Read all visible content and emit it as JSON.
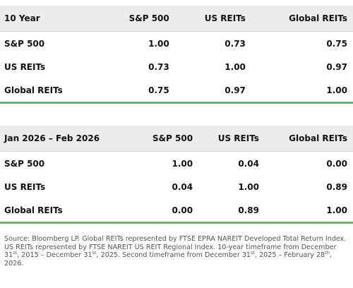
{
  "tables": [
    {
      "header": [
        "10 Year",
        "S&P 500",
        "US REITs",
        "Global REITs"
      ],
      "rows": [
        [
          "S&P 500",
          "1.00",
          "0.73",
          "0.75"
        ],
        [
          "US REITs",
          "0.73",
          "1.00",
          "0.97"
        ],
        [
          "Global REITs",
          "0.75",
          "0.97",
          "1.00"
        ]
      ]
    },
    {
      "header": [
        "Jan 2026 – Feb 2026",
        "S&P 500",
        "US REITs",
        "Global REITs"
      ],
      "rows": [
        [
          "S&P 500",
          "1.00",
          "0.04",
          "0.00"
        ],
        [
          "US REITs",
          "0.04",
          "1.00",
          "0.89"
        ],
        [
          "Global REITs",
          "0.00",
          "0.89",
          "1.00"
        ]
      ]
    }
  ],
  "note": [
    "Source: Bloomberg LP. Global REITs represented by FTSE EPRA NAREIT Developed Total Return Index. US REITs represented by FTSE NAREIT US REIT Regional Index. 10-year timeframe from December 31",
    {
      "sup": "st"
    },
    ", 2015 – December 31",
    {
      "sup": "st"
    },
    ", 2025. Second timeframe from December 31",
    {
      "sup": "st"
    },
    ", 2025 – February 28",
    {
      "sup": "th"
    },
    ", 2026."
  ]
}
